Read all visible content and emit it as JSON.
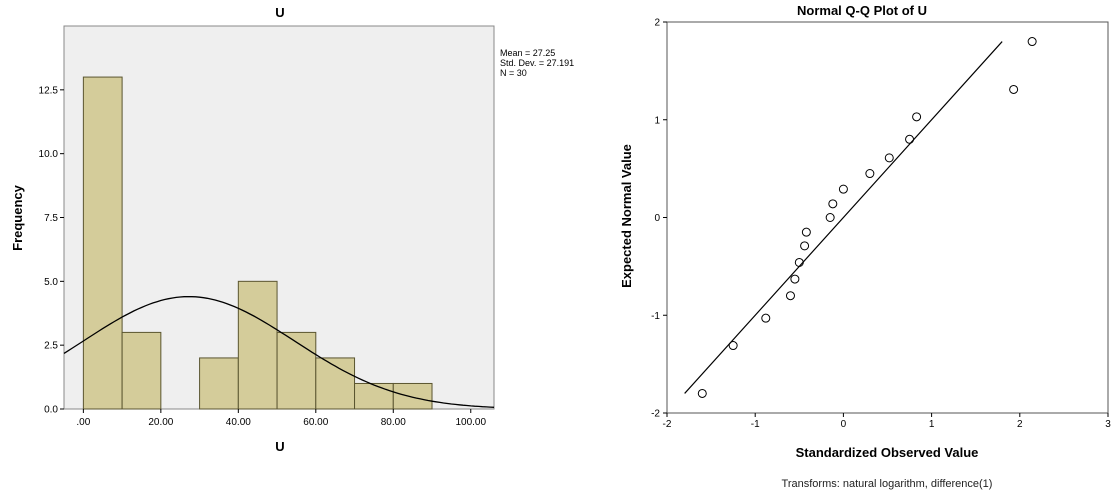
{
  "chart_data": [
    {
      "type": "bar",
      "title": "U",
      "xlabel": "U",
      "ylabel": "Frequency",
      "bin_edges": [
        0,
        10,
        20,
        30,
        40,
        50,
        60,
        70,
        80,
        90
      ],
      "values": [
        13,
        3,
        0,
        2,
        5,
        3,
        2,
        1,
        1
      ],
      "xlim": [
        -5,
        106
      ],
      "ylim": [
        0,
        15
      ],
      "x_ticks": [
        0,
        20,
        40,
        60,
        80,
        100
      ],
      "x_tick_labels": [
        ".00",
        "20.00",
        "40.00",
        "60.00",
        "80.00",
        "100.00"
      ],
      "y_ticks": [
        0,
        2.5,
        5,
        7.5,
        10,
        12.5
      ],
      "y_tick_labels": [
        "0.0",
        "2.5",
        "5.0",
        "7.5",
        "10.0",
        "12.5"
      ],
      "normal_curve": {
        "mean": 27.25,
        "sd": 27.191,
        "n": 30,
        "bin_width": 10
      },
      "stats_lines": [
        "Mean = 27.25",
        "Std. Dev. = 27.191",
        "N = 30"
      ],
      "colors": {
        "plot_bg": "#efefef",
        "bar_fill": "#d4cc9a",
        "bar_stroke": "#5a5530",
        "curve": "#000000"
      }
    },
    {
      "type": "scatter",
      "title": "Normal Q-Q Plot of U",
      "xlabel": "Standardized Observed Value",
      "ylabel": "Expected Normal Value",
      "xlim": [
        -2,
        3
      ],
      "ylim": [
        -2,
        2
      ],
      "x_ticks": [
        -2,
        -1,
        0,
        1,
        2,
        3
      ],
      "y_ticks": [
        -2,
        -1,
        0,
        1,
        2
      ],
      "x_tick_labels": [
        "-2",
        "-1",
        "0",
        "1",
        "2",
        "3"
      ],
      "y_tick_labels": [
        "-2",
        "-1",
        "0",
        "1",
        "2"
      ],
      "points": [
        [
          -1.6,
          -1.8
        ],
        [
          -1.25,
          -1.31
        ],
        [
          -0.88,
          -1.03
        ],
        [
          -0.6,
          -0.8
        ],
        [
          -0.55,
          -0.63
        ],
        [
          -0.5,
          -0.46
        ],
        [
          -0.44,
          -0.29
        ],
        [
          -0.42,
          -0.15
        ],
        [
          -0.15,
          0.0
        ],
        [
          -0.12,
          0.14
        ],
        [
          0.0,
          0.29
        ],
        [
          0.3,
          0.45
        ],
        [
          0.52,
          0.61
        ],
        [
          0.75,
          0.8
        ],
        [
          0.83,
          1.03
        ],
        [
          1.93,
          1.31
        ],
        [
          2.14,
          1.8
        ]
      ],
      "reference_line": [
        [
          -1.8,
          -1.8
        ],
        [
          1.8,
          1.8
        ]
      ],
      "footnote": "Transforms: natural logarithm, difference(1)",
      "colors": {
        "plot_bg": "#ffffff",
        "marker": "#000000",
        "line": "#000000"
      }
    }
  ]
}
